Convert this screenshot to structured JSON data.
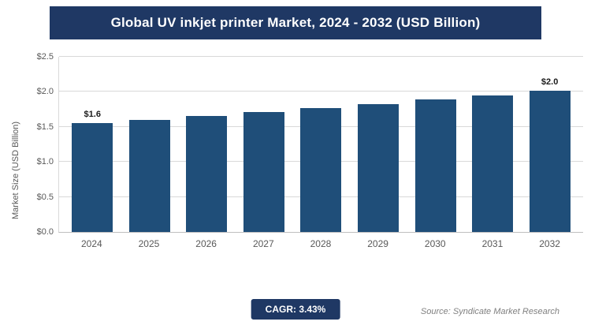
{
  "header": {
    "title": "Global UV inkjet printer Market, 2024 - 2032 (USD Billion)"
  },
  "chart_data": {
    "type": "bar",
    "title": "Global UV inkjet printer Market, 2024 - 2032 (USD Billion)",
    "categories": [
      "2024",
      "2025",
      "2026",
      "2027",
      "2028",
      "2029",
      "2030",
      "2031",
      "2032"
    ],
    "values": [
      1.55,
      1.6,
      1.66,
      1.71,
      1.77,
      1.83,
      1.89,
      1.95,
      2.02
    ],
    "data_labels": [
      "$1.6",
      "",
      "",
      "",
      "",
      "",
      "",
      "",
      "$2.0"
    ],
    "xlabel": "",
    "ylabel": "Market Size (USD Billion)",
    "yticks": [
      "$0.0",
      "$0.5",
      "$1.0",
      "$1.5",
      "$2.0",
      "$2.5"
    ],
    "ylim": [
      0,
      2.5
    ],
    "grid": true,
    "legend": "none",
    "bar_color": "#1f4e79"
  },
  "footer": {
    "cagr_label": "CAGR: 3.43%",
    "source": "Source: Syndicate Market Research"
  },
  "colors": {
    "banner": "#1f3864",
    "bar": "#1f4e79",
    "gridline": "#d9d9d9",
    "axis_text": "#595959",
    "source_text": "#808080"
  }
}
